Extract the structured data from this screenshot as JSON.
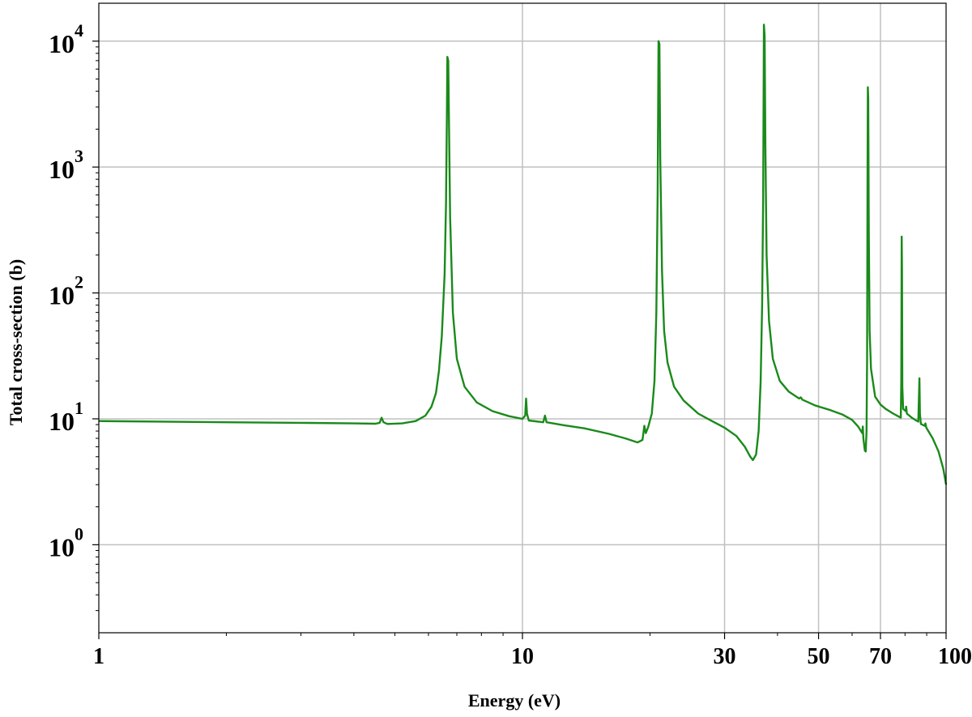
{
  "chart_data": {
    "type": "line",
    "title": "",
    "xlabel": "Energy (eV)",
    "ylabel": "Total cross-section (b)",
    "xscale": "log",
    "yscale": "log",
    "xlim": [
      1,
      100
    ],
    "ylim": [
      0.2,
      20000
    ],
    "grid": true,
    "legend": "none",
    "x_ticks": [
      {
        "value": 1,
        "label": "1"
      },
      {
        "value": 10,
        "label": "10"
      },
      {
        "value": 30,
        "label": "30"
      },
      {
        "value": 50,
        "label": "50"
      },
      {
        "value": 70,
        "label": "70"
      },
      {
        "value": 100,
        "label": "100"
      }
    ],
    "y_ticks": [
      {
        "value": 1,
        "label": "10",
        "exp": "0"
      },
      {
        "value": 10,
        "label": "10",
        "exp": "1"
      },
      {
        "value": 100,
        "label": "10",
        "exp": "2"
      },
      {
        "value": 1000,
        "label": "10",
        "exp": "3"
      },
      {
        "value": 10000,
        "label": "10",
        "exp": "4"
      }
    ],
    "series": [
      {
        "color": "#1a8a1a",
        "points": [
          [
            1.0,
            9.6
          ],
          [
            2.0,
            9.4
          ],
          [
            3.0,
            9.3
          ],
          [
            4.0,
            9.2
          ],
          [
            4.5,
            9.15
          ],
          [
            4.6,
            9.3
          ],
          [
            4.65,
            10.2
          ],
          [
            4.7,
            9.4
          ],
          [
            4.8,
            9.1
          ],
          [
            5.2,
            9.2
          ],
          [
            5.6,
            9.6
          ],
          [
            5.9,
            10.6
          ],
          [
            6.1,
            12.5
          ],
          [
            6.25,
            16
          ],
          [
            6.35,
            24
          ],
          [
            6.45,
            45
          ],
          [
            6.55,
            140
          ],
          [
            6.6,
            500
          ],
          [
            6.63,
            2500
          ],
          [
            6.65,
            7500
          ],
          [
            6.68,
            7000
          ],
          [
            6.71,
            2000
          ],
          [
            6.75,
            400
          ],
          [
            6.85,
            70
          ],
          [
            7.0,
            30
          ],
          [
            7.3,
            18
          ],
          [
            7.8,
            13.5
          ],
          [
            8.5,
            11.5
          ],
          [
            9.3,
            10.5
          ],
          [
            10.0,
            10.0
          ],
          [
            10.15,
            10.6
          ],
          [
            10.2,
            14.5
          ],
          [
            10.25,
            11
          ],
          [
            10.35,
            9.7
          ],
          [
            11.2,
            9.4
          ],
          [
            11.3,
            10.6
          ],
          [
            11.4,
            9.4
          ],
          [
            12.5,
            8.9
          ],
          [
            14,
            8.4
          ],
          [
            16,
            7.6
          ],
          [
            17.5,
            7.0
          ],
          [
            18.7,
            6.5
          ],
          [
            19.2,
            6.8
          ],
          [
            19.4,
            8.8
          ],
          [
            19.55,
            7.7
          ],
          [
            19.8,
            8.6
          ],
          [
            20.2,
            11
          ],
          [
            20.5,
            20
          ],
          [
            20.7,
            70
          ],
          [
            20.85,
            600
          ],
          [
            20.95,
            10000
          ],
          [
            21.05,
            9500
          ],
          [
            21.15,
            1200
          ],
          [
            21.35,
            150
          ],
          [
            21.6,
            50
          ],
          [
            22.0,
            28
          ],
          [
            22.8,
            18
          ],
          [
            24,
            14
          ],
          [
            26,
            11
          ],
          [
            28,
            9.6
          ],
          [
            30,
            8.5
          ],
          [
            32,
            7.3
          ],
          [
            33.5,
            6.0
          ],
          [
            34.5,
            5.0
          ],
          [
            35.0,
            4.7
          ],
          [
            35.6,
            5.2
          ],
          [
            36.1,
            8
          ],
          [
            36.5,
            20
          ],
          [
            36.8,
            80
          ],
          [
            37.0,
            600
          ],
          [
            37.15,
            13500
          ],
          [
            37.3,
            11000
          ],
          [
            37.45,
            1500
          ],
          [
            37.7,
            200
          ],
          [
            38.2,
            60
          ],
          [
            39,
            30
          ],
          [
            40.5,
            20
          ],
          [
            42.5,
            16.5
          ],
          [
            45,
            14.5
          ],
          [
            45.4,
            14.8
          ],
          [
            45.8,
            14.2
          ],
          [
            49,
            12.8
          ],
          [
            53,
            11.8
          ],
          [
            57,
            10.8
          ],
          [
            60,
            9.8
          ],
          [
            62,
            8.7
          ],
          [
            63.4,
            7.7
          ],
          [
            63.6,
            8.7
          ],
          [
            63.8,
            7.0
          ],
          [
            64.3,
            5.6
          ],
          [
            64.6,
            5.5
          ],
          [
            64.9,
            8
          ],
          [
            65.1,
            30
          ],
          [
            65.25,
            700
          ],
          [
            65.35,
            4300
          ],
          [
            65.5,
            3500
          ],
          [
            65.7,
            300
          ],
          [
            66.0,
            50
          ],
          [
            66.5,
            25
          ],
          [
            68,
            15
          ],
          [
            70,
            13
          ],
          [
            72,
            12
          ],
          [
            75,
            11
          ],
          [
            77,
            10.5
          ],
          [
            78.2,
            10.2
          ],
          [
            78.4,
            20
          ],
          [
            78.55,
            280
          ],
          [
            78.7,
            150
          ],
          [
            78.85,
            18
          ],
          [
            79.2,
            12
          ],
          [
            80.3,
            11.5
          ],
          [
            80.5,
            12.5
          ],
          [
            80.8,
            11
          ],
          [
            83,
            10.2
          ],
          [
            85,
            9.7
          ],
          [
            86,
            9.5
          ],
          [
            86.3,
            15
          ],
          [
            86.5,
            21
          ],
          [
            86.75,
            11
          ],
          [
            87.2,
            9.1
          ],
          [
            89,
            8.8
          ],
          [
            89.4,
            9.2
          ],
          [
            89.8,
            8.5
          ],
          [
            93,
            7
          ],
          [
            96,
            5.5
          ],
          [
            98.5,
            4.0
          ],
          [
            100,
            3.0
          ]
        ]
      }
    ]
  }
}
